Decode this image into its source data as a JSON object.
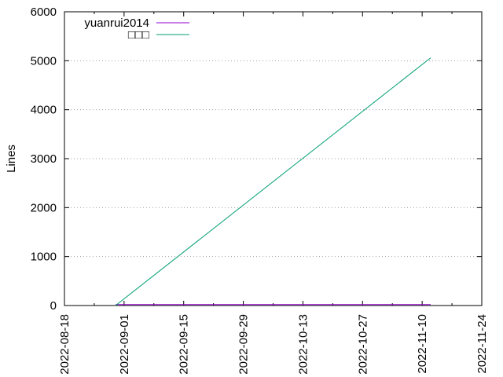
{
  "chart_data": {
    "type": "line",
    "title": "",
    "xlabel": "",
    "ylabel": "Lines",
    "x_axis_type": "date",
    "xlim": [
      "2022-08-18",
      "2022-11-24"
    ],
    "ylim": [
      0,
      6000
    ],
    "x_ticks": [
      "2022-08-18",
      "2022-09-01",
      "2022-09-15",
      "2022-09-29",
      "2022-10-13",
      "2022-10-27",
      "2022-11-10",
      "2022-11-24"
    ],
    "y_ticks": [
      0,
      1000,
      2000,
      3000,
      4000,
      5000,
      6000
    ],
    "grid": "horizontal dotted",
    "legend_position": "top-left",
    "series": [
      {
        "name": "yuanrui2014",
        "color": "#9400d3",
        "points": [
          {
            "x": "2022-08-30",
            "y": 20
          },
          {
            "x": "2022-11-12",
            "y": 20
          }
        ]
      },
      {
        "name": "□□□",
        "color": "#009e73",
        "points": [
          {
            "x": "2022-08-30",
            "y": 0
          },
          {
            "x": "2022-11-12",
            "y": 5060
          }
        ]
      }
    ]
  }
}
